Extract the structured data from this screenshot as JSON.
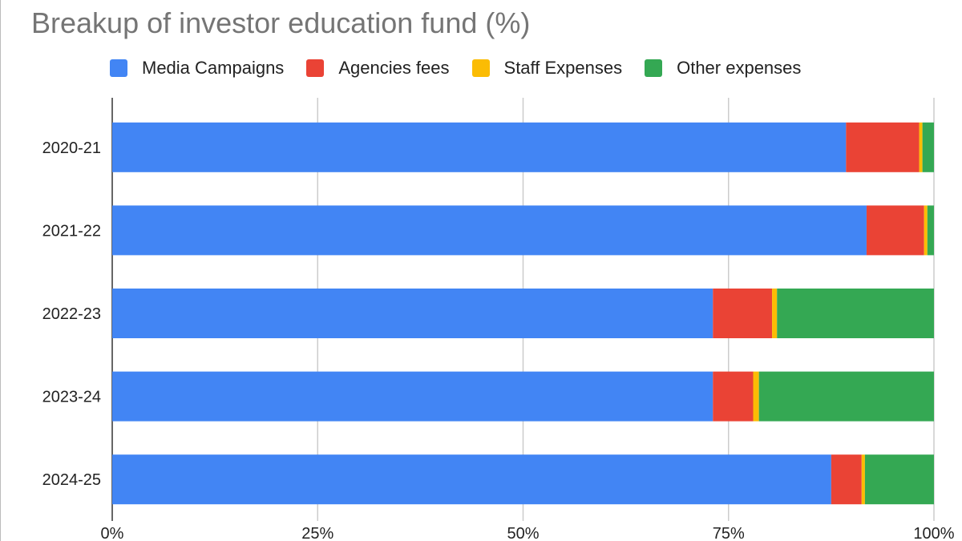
{
  "chart_data": {
    "type": "bar",
    "orientation": "horizontal",
    "stacked": "percent",
    "title": "Breakup of investor education fund (%)",
    "categories": [
      "2020-21",
      "2021-22",
      "2022-23",
      "2023-24",
      "2024-25"
    ],
    "series": [
      {
        "name": "Media Campaigns",
        "color": "#4285F4",
        "values": [
          89.3,
          91.8,
          73.1,
          73.1,
          87.5
        ]
      },
      {
        "name": "Agencies fees",
        "color": "#EA4335",
        "values": [
          8.9,
          7.0,
          7.2,
          4.9,
          3.7
        ]
      },
      {
        "name": "Staff Expenses",
        "color": "#FBBC04",
        "values": [
          0.4,
          0.4,
          0.6,
          0.7,
          0.4
        ]
      },
      {
        "name": "Other expenses",
        "color": "#34A853",
        "values": [
          1.4,
          0.8,
          19.1,
          21.3,
          8.4
        ]
      }
    ],
    "xticks": [
      "0%",
      "25%",
      "50%",
      "75%",
      "100%"
    ],
    "xlim": [
      0,
      100
    ],
    "grid": true,
    "legend": "top"
  }
}
